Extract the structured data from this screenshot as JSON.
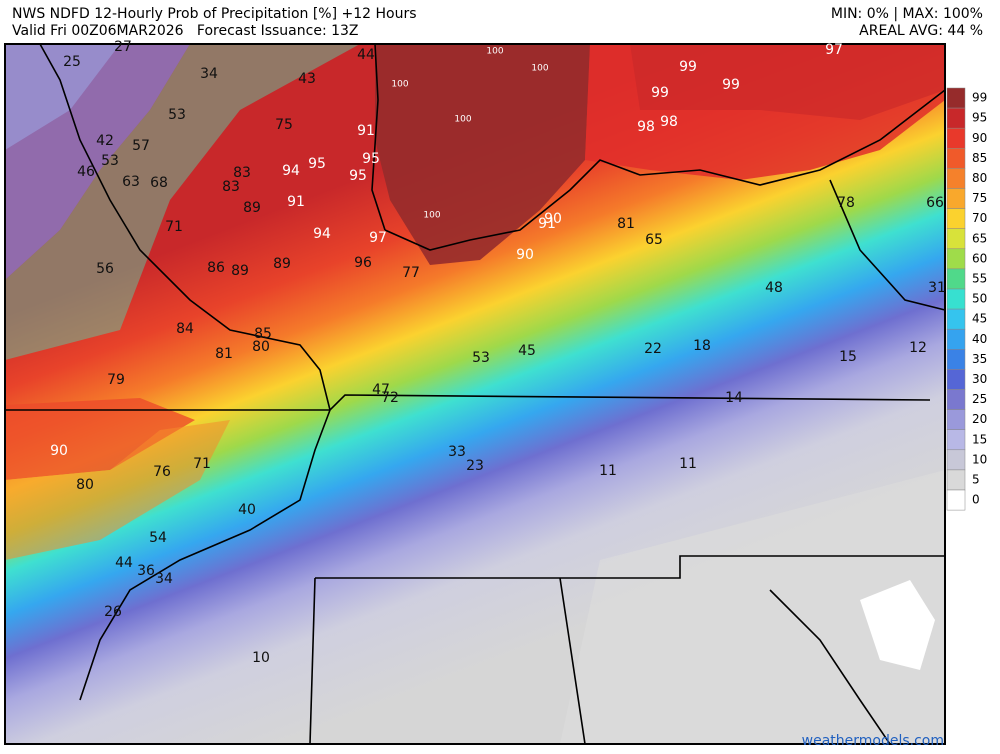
{
  "header": {
    "title": "NWS NDFD 12-Hourly Prob of Precipitation [%] +12 Hours",
    "valid": "Valid Fri 00Z06MAR2026   Forecast Issuance: 13Z",
    "stats": "MIN: 0% | MAX: 100%",
    "areal": "AREAL AVG: 44 %"
  },
  "legend": {
    "levels": [
      99,
      95,
      90,
      85,
      80,
      75,
      70,
      65,
      60,
      55,
      50,
      45,
      40,
      35,
      30,
      25,
      20,
      15,
      10,
      5,
      0
    ],
    "colors": [
      "#962b2b",
      "#c8282a",
      "#e8392b",
      "#f05a2a",
      "#f5812b",
      "#f9a82c",
      "#fbd22e",
      "#d8e23a",
      "#9fdc4a",
      "#50d98a",
      "#37e0d0",
      "#35c4ee",
      "#35a3ef",
      "#3a82e6",
      "#5566d6",
      "#7a78cf",
      "#9a99db",
      "#b8b8e6",
      "#c8c8d8",
      "#d9d9d9",
      "#ffffff"
    ]
  },
  "map_labels": [
    27,
    25,
    34,
    43,
    44,
    100,
    100,
    99,
    97,
    99,
    99,
    53,
    75,
    91,
    100,
    100,
    98,
    98,
    42,
    57,
    53,
    46,
    63,
    68,
    83,
    94,
    95,
    95,
    95,
    83,
    89,
    91,
    100,
    90,
    91,
    81,
    78,
    66,
    71,
    94,
    97,
    65,
    90,
    56,
    86,
    89,
    89,
    96,
    77,
    31,
    48,
    84,
    85,
    80,
    81,
    53,
    45,
    22,
    18,
    15,
    12,
    79,
    47,
    72,
    14,
    90,
    33,
    76,
    71,
    23,
    11,
    11,
    80,
    40,
    54,
    44,
    36,
    34,
    26,
    10
  ],
  "credit": "weathermodels.com"
}
